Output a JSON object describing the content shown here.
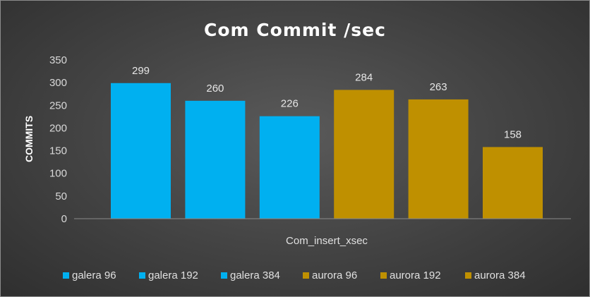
{
  "chart_data": {
    "type": "bar",
    "title": "Com Commit /sec",
    "ylabel": "COMMITS",
    "xlabel": "",
    "categories": [
      "Com_insert_xsec"
    ],
    "ylim": [
      0,
      350
    ],
    "yticks": [
      0,
      50,
      100,
      150,
      200,
      250,
      300,
      350
    ],
    "grid": false,
    "legend_position": "bottom",
    "series": [
      {
        "name": "galera 96",
        "values": [
          299
        ],
        "color": "#00b0f0"
      },
      {
        "name": "galera 192",
        "values": [
          260
        ],
        "color": "#00b0f0"
      },
      {
        "name": "galera 384",
        "values": [
          226
        ],
        "color": "#00b0f0"
      },
      {
        "name": "aurora 96",
        "values": [
          284
        ],
        "color": "#bf9000"
      },
      {
        "name": "aurora 192",
        "values": [
          263
        ],
        "color": "#bf9000"
      },
      {
        "name": "aurora 384",
        "values": [
          158
        ],
        "color": "#bf9000"
      }
    ]
  }
}
